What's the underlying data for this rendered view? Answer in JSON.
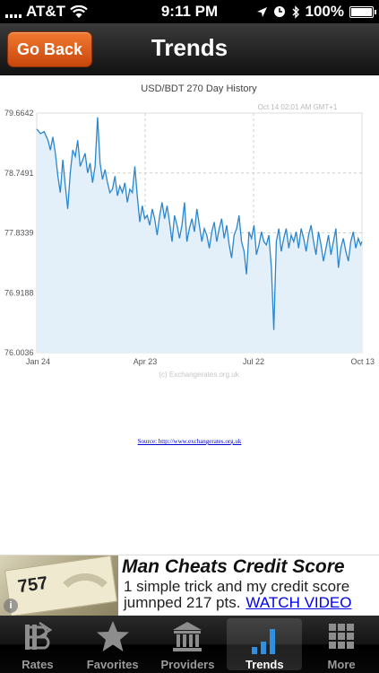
{
  "status_bar": {
    "carrier": "AT&T",
    "time": "9:11 PM",
    "battery": "100%"
  },
  "nav": {
    "back_label": "Go Back",
    "title": "Trends"
  },
  "chart_data": {
    "type": "line",
    "title": "USD/BDT  270 Day History",
    "timestamp": "Oct 14  02:01 AM GMT+1",
    "watermark": "(c) Exchangerates.org.uk",
    "y_ticks": [
      "79.6642",
      "78.7491",
      "77.8339",
      "76.9188",
      "76.0036"
    ],
    "x_ticks": [
      "Jan 24",
      "Apr 23",
      "Jul 22",
      "Oct 13"
    ],
    "ylim": [
      76.0036,
      79.6642
    ],
    "xlim": [
      0,
      262
    ],
    "x_units": "trading days from Jan 24",
    "grid": true,
    "series_color": "#2a86cf",
    "fill_color": "#e3f0fa",
    "series": [
      {
        "name": "USD/BDT",
        "x": [
          0,
          3,
          6,
          9,
          11,
          13,
          15,
          17,
          19,
          21,
          23,
          25,
          27,
          29,
          31,
          33,
          35,
          37,
          39,
          41,
          43,
          45,
          47,
          49,
          51,
          53,
          55,
          57,
          59,
          61,
          63,
          65,
          67,
          69,
          71,
          73,
          75,
          77,
          79,
          81,
          83,
          85,
          87,
          89,
          91,
          93,
          95,
          97,
          99,
          101,
          103,
          105,
          107,
          109,
          111,
          113,
          115,
          117,
          119,
          121,
          123,
          125,
          127,
          129,
          131,
          133,
          135,
          137,
          139,
          141,
          143,
          145,
          147,
          149,
          151,
          153,
          155,
          157,
          159,
          161,
          163,
          165,
          167,
          169,
          171,
          173,
          175,
          177,
          179,
          181,
          183,
          185,
          187,
          189,
          191,
          193,
          195,
          197,
          199,
          201,
          203,
          205,
          207,
          209,
          211,
          213,
          215,
          217,
          219,
          221,
          223,
          225,
          227,
          229,
          231,
          233,
          235,
          237,
          239,
          241,
          243,
          245,
          247,
          249,
          251,
          253,
          255,
          257,
          259,
          261,
          262
        ],
        "values": [
          79.42,
          79.35,
          79.38,
          79.25,
          79.1,
          79.3,
          79.05,
          78.7,
          78.45,
          78.95,
          78.55,
          78.2,
          78.75,
          79.1,
          79.0,
          79.25,
          78.85,
          78.95,
          79.05,
          78.75,
          78.9,
          78.6,
          78.85,
          79.6,
          78.9,
          78.65,
          78.8,
          78.6,
          78.45,
          78.5,
          78.7,
          78.4,
          78.55,
          78.45,
          78.6,
          78.3,
          78.5,
          78.45,
          78.85,
          78.4,
          78.0,
          78.25,
          78.05,
          78.1,
          77.95,
          78.2,
          78.05,
          77.8,
          78.1,
          78.3,
          78.05,
          78.25,
          78.0,
          77.7,
          78.1,
          77.95,
          77.75,
          77.95,
          78.3,
          77.7,
          77.9,
          78.05,
          77.85,
          78.2,
          77.95,
          77.7,
          77.9,
          77.8,
          77.6,
          77.85,
          78.0,
          77.7,
          77.9,
          78.05,
          77.75,
          77.95,
          77.65,
          77.45,
          77.8,
          77.9,
          78.1,
          77.7,
          77.55,
          77.2,
          77.85,
          77.75,
          77.95,
          77.5,
          77.65,
          77.85,
          77.7,
          77.65,
          77.8,
          77.3,
          76.35,
          77.7,
          77.9,
          77.55,
          77.75,
          77.9,
          77.6,
          77.8,
          77.7,
          77.85,
          77.6,
          77.9,
          77.75,
          77.55,
          77.8,
          77.95,
          77.7,
          77.5,
          77.85,
          77.65,
          77.4,
          77.6,
          77.8,
          77.5,
          77.7,
          77.9,
          77.3,
          77.6,
          77.75,
          77.55,
          77.4,
          77.7,
          77.85,
          77.6,
          77.75,
          77.65,
          77.7
        ]
      }
    ]
  },
  "source_text": "Source: http://www.exchangerates.org.uk",
  "ad": {
    "headline": "Man Cheats Credit Score",
    "line1": "1 simple trick and my credit score",
    "line2": "jumnped 217 pts.",
    "cta": "WATCH VIDEO",
    "photo_number": "757",
    "info_glyph": "i"
  },
  "tabs": [
    {
      "label": "Rates",
      "icon": "rates-icon"
    },
    {
      "label": "Favorites",
      "icon": "star-icon"
    },
    {
      "label": "Providers",
      "icon": "bank-icon"
    },
    {
      "label": "Trends",
      "icon": "trends-icon",
      "active": true
    },
    {
      "label": "More",
      "icon": "grid-icon"
    }
  ]
}
